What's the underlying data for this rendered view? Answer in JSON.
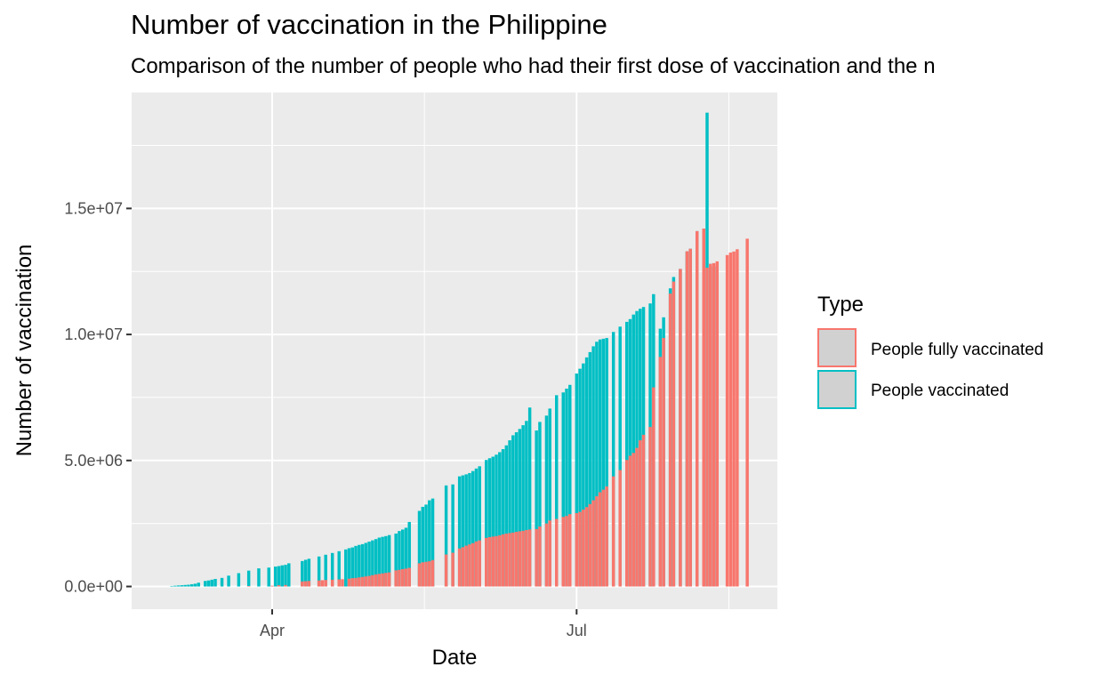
{
  "chart_data": {
    "type": "bar",
    "title": "Number of vaccination in the Philippine",
    "subtitle": "Comparison of the number of people who had their first dose of vaccination and the n",
    "xlabel": "Date",
    "ylabel": "Number of vaccination",
    "x_ticks": [
      {
        "date": "2021-04-01",
        "label": "Apr"
      },
      {
        "date": "2021-07-01",
        "label": "Jul"
      }
    ],
    "y_ticks": [
      {
        "value": 0,
        "label": "0.0e+00"
      },
      {
        "value": 5000000,
        "label": "5.0e+06"
      },
      {
        "value": 10000000,
        "label": "1.0e+07"
      },
      {
        "value": 15000000,
        "label": "1.5e+07"
      }
    ],
    "xlim": [
      "2021-02-18",
      "2021-08-30"
    ],
    "ylim": [
      -900000,
      19600000
    ],
    "grid": true,
    "legend_position": "right",
    "legend_title": "Type",
    "colors": {
      "People fully vaccinated": "#F8766D",
      "People vaccinated": "#00BFC4"
    },
    "series": [
      {
        "name": "People vaccinated",
        "points": [
          [
            "2021-03-02",
            20000
          ],
          [
            "2021-03-03",
            30000
          ],
          [
            "2021-03-04",
            40000
          ],
          [
            "2021-03-05",
            50000
          ],
          [
            "2021-03-06",
            60000
          ],
          [
            "2021-03-07",
            70000
          ],
          [
            "2021-03-08",
            90000
          ],
          [
            "2021-03-09",
            110000
          ],
          [
            "2021-03-10",
            150000
          ],
          [
            "2021-03-12",
            220000
          ],
          [
            "2021-03-13",
            240000
          ],
          [
            "2021-03-14",
            270000
          ],
          [
            "2021-03-15",
            300000
          ],
          [
            "2021-03-17",
            340000
          ],
          [
            "2021-03-19",
            430000
          ],
          [
            "2021-03-22",
            530000
          ],
          [
            "2021-03-25",
            630000
          ],
          [
            "2021-03-28",
            720000
          ],
          [
            "2021-03-31",
            750000
          ],
          [
            "2021-04-02",
            790000
          ],
          [
            "2021-04-03",
            810000
          ],
          [
            "2021-04-04",
            840000
          ],
          [
            "2021-04-05",
            860000
          ],
          [
            "2021-04-06",
            920000
          ],
          [
            "2021-04-10",
            1010000
          ],
          [
            "2021-04-11",
            1060000
          ],
          [
            "2021-04-12",
            1100000
          ],
          [
            "2021-04-15",
            1190000
          ],
          [
            "2021-04-17",
            1260000
          ],
          [
            "2021-04-19",
            1330000
          ],
          [
            "2021-04-21",
            1400000
          ],
          [
            "2021-04-23",
            1470000
          ],
          [
            "2021-04-24",
            1520000
          ],
          [
            "2021-04-25",
            1550000
          ],
          [
            "2021-04-26",
            1610000
          ],
          [
            "2021-04-27",
            1650000
          ],
          [
            "2021-04-28",
            1680000
          ],
          [
            "2021-04-29",
            1730000
          ],
          [
            "2021-04-30",
            1780000
          ],
          [
            "2021-05-01",
            1830000
          ],
          [
            "2021-05-02",
            1880000
          ],
          [
            "2021-05-03",
            1940000
          ],
          [
            "2021-05-04",
            1970000
          ],
          [
            "2021-05-05",
            2000000
          ],
          [
            "2021-05-06",
            2040000
          ],
          [
            "2021-05-08",
            2100000
          ],
          [
            "2021-05-09",
            2200000
          ],
          [
            "2021-05-10",
            2260000
          ],
          [
            "2021-05-11",
            2330000
          ],
          [
            "2021-05-12",
            2560000
          ],
          [
            "2021-05-15",
            3000000
          ],
          [
            "2021-05-16",
            3160000
          ],
          [
            "2021-05-17",
            3250000
          ],
          [
            "2021-05-18",
            3420000
          ],
          [
            "2021-05-19",
            3490000
          ],
          [
            "2021-05-23",
            4010000
          ],
          [
            "2021-05-25",
            4050000
          ],
          [
            "2021-05-27",
            4370000
          ],
          [
            "2021-05-28",
            4410000
          ],
          [
            "2021-05-29",
            4450000
          ],
          [
            "2021-05-30",
            4500000
          ],
          [
            "2021-05-31",
            4580000
          ],
          [
            "2021-06-01",
            4680000
          ],
          [
            "2021-06-02",
            4770000
          ],
          [
            "2021-06-04",
            5020000
          ],
          [
            "2021-06-05",
            5090000
          ],
          [
            "2021-06-06",
            5150000
          ],
          [
            "2021-06-07",
            5230000
          ],
          [
            "2021-06-08",
            5330000
          ],
          [
            "2021-06-09",
            5450000
          ],
          [
            "2021-06-10",
            5600000
          ],
          [
            "2021-06-11",
            5800000
          ],
          [
            "2021-06-12",
            6000000
          ],
          [
            "2021-06-13",
            6120000
          ],
          [
            "2021-06-14",
            6250000
          ],
          [
            "2021-06-15",
            6400000
          ],
          [
            "2021-06-16",
            6570000
          ],
          [
            "2021-06-17",
            7100000
          ],
          [
            "2021-06-19",
            6190000
          ],
          [
            "2021-06-20",
            6530000
          ],
          [
            "2021-06-22",
            6780000
          ],
          [
            "2021-06-23",
            7060000
          ],
          [
            "2021-06-25",
            7590000
          ],
          [
            "2021-06-27",
            7700000
          ],
          [
            "2021-06-28",
            7850000
          ],
          [
            "2021-06-29",
            8000000
          ],
          [
            "2021-07-01",
            8450000
          ],
          [
            "2021-07-02",
            8640000
          ],
          [
            "2021-07-03",
            8850000
          ],
          [
            "2021-07-04",
            9090000
          ],
          [
            "2021-07-05",
            9300000
          ],
          [
            "2021-07-06",
            9530000
          ],
          [
            "2021-07-07",
            9710000
          ],
          [
            "2021-07-08",
            9800000
          ],
          [
            "2021-07-09",
            9830000
          ],
          [
            "2021-07-10",
            9860000
          ],
          [
            "2021-07-12",
            10100000
          ],
          [
            "2021-07-14",
            10310000
          ],
          [
            "2021-07-16",
            10500000
          ],
          [
            "2021-07-17",
            10610000
          ],
          [
            "2021-07-18",
            10790000
          ],
          [
            "2021-07-19",
            10930000
          ],
          [
            "2021-07-20",
            11020000
          ],
          [
            "2021-07-21",
            11090000
          ],
          [
            "2021-07-23",
            11230000
          ],
          [
            "2021-07-24",
            11600000
          ],
          [
            "2021-07-26",
            10230000
          ],
          [
            "2021-07-27",
            10680000
          ],
          [
            "2021-07-29",
            11830000
          ],
          [
            "2021-07-30",
            12280000
          ],
          [
            "2021-08-01",
            12600000
          ],
          [
            "2021-08-03",
            13300000
          ],
          [
            "2021-08-04",
            13400000
          ],
          [
            "2021-08-06",
            14100000
          ],
          [
            "2021-08-08",
            14200000
          ],
          [
            "2021-08-09",
            18800000
          ],
          [
            "2021-08-10",
            12800000
          ],
          [
            "2021-08-11",
            12700000
          ]
        ]
      },
      {
        "name": "People fully vaccinated",
        "points": [
          [
            "2021-03-25",
            20000
          ],
          [
            "2021-04-01",
            30000
          ],
          [
            "2021-04-03",
            50000
          ],
          [
            "2021-04-05",
            60000
          ],
          [
            "2021-04-10",
            200000
          ],
          [
            "2021-04-11",
            210000
          ],
          [
            "2021-04-12",
            220000
          ],
          [
            "2021-04-15",
            240000
          ],
          [
            "2021-04-16",
            250000
          ],
          [
            "2021-04-17",
            260000
          ],
          [
            "2021-04-19",
            270000
          ],
          [
            "2021-04-21",
            280000
          ],
          [
            "2021-04-22",
            290000
          ],
          [
            "2021-04-24",
            310000
          ],
          [
            "2021-04-25",
            330000
          ],
          [
            "2021-04-26",
            340000
          ],
          [
            "2021-04-27",
            360000
          ],
          [
            "2021-04-28",
            380000
          ],
          [
            "2021-04-29",
            400000
          ],
          [
            "2021-04-30",
            420000
          ],
          [
            "2021-05-01",
            450000
          ],
          [
            "2021-05-02",
            480000
          ],
          [
            "2021-05-03",
            500000
          ],
          [
            "2021-05-04",
            520000
          ],
          [
            "2021-05-05",
            540000
          ],
          [
            "2021-05-06",
            560000
          ],
          [
            "2021-05-08",
            640000
          ],
          [
            "2021-05-09",
            660000
          ],
          [
            "2021-05-10",
            690000
          ],
          [
            "2021-05-11",
            710000
          ],
          [
            "2021-05-12",
            740000
          ],
          [
            "2021-05-15",
            920000
          ],
          [
            "2021-05-16",
            960000
          ],
          [
            "2021-05-17",
            980000
          ],
          [
            "2021-05-18",
            1000000
          ],
          [
            "2021-05-19",
            1050000
          ],
          [
            "2021-05-23",
            1270000
          ],
          [
            "2021-05-25",
            1340000
          ],
          [
            "2021-05-27",
            1510000
          ],
          [
            "2021-05-28",
            1560000
          ],
          [
            "2021-05-29",
            1620000
          ],
          [
            "2021-05-30",
            1670000
          ],
          [
            "2021-05-31",
            1720000
          ],
          [
            "2021-06-01",
            1790000
          ],
          [
            "2021-06-02",
            1830000
          ],
          [
            "2021-06-04",
            1930000
          ],
          [
            "2021-06-05",
            1960000
          ],
          [
            "2021-06-06",
            1980000
          ],
          [
            "2021-06-07",
            2000000
          ],
          [
            "2021-06-08",
            2030000
          ],
          [
            "2021-06-09",
            2070000
          ],
          [
            "2021-06-10",
            2100000
          ],
          [
            "2021-06-11",
            2120000
          ],
          [
            "2021-06-12",
            2140000
          ],
          [
            "2021-06-13",
            2170000
          ],
          [
            "2021-06-14",
            2190000
          ],
          [
            "2021-06-15",
            2210000
          ],
          [
            "2021-06-16",
            2240000
          ],
          [
            "2021-06-17",
            2260000
          ],
          [
            "2021-06-19",
            2280000
          ],
          [
            "2021-06-20",
            2380000
          ],
          [
            "2021-06-22",
            2500000
          ],
          [
            "2021-06-23",
            2620000
          ],
          [
            "2021-06-25",
            2680000
          ],
          [
            "2021-06-27",
            2760000
          ],
          [
            "2021-06-28",
            2800000
          ],
          [
            "2021-06-29",
            2870000
          ],
          [
            "2021-07-01",
            2910000
          ],
          [
            "2021-07-02",
            2960000
          ],
          [
            "2021-07-03",
            3050000
          ],
          [
            "2021-07-04",
            3150000
          ],
          [
            "2021-07-05",
            3270000
          ],
          [
            "2021-07-06",
            3420000
          ],
          [
            "2021-07-07",
            3580000
          ],
          [
            "2021-07-08",
            3740000
          ],
          [
            "2021-07-09",
            3840000
          ],
          [
            "2021-07-10",
            3970000
          ],
          [
            "2021-07-12",
            4370000
          ],
          [
            "2021-07-14",
            4620000
          ],
          [
            "2021-07-16",
            5020000
          ],
          [
            "2021-07-17",
            5190000
          ],
          [
            "2021-07-18",
            5300000
          ],
          [
            "2021-07-19",
            5500000
          ],
          [
            "2021-07-20",
            5800000
          ],
          [
            "2021-07-21",
            6020000
          ],
          [
            "2021-07-23",
            6330000
          ],
          [
            "2021-07-24",
            7900000
          ],
          [
            "2021-07-26",
            9110000
          ],
          [
            "2021-07-27",
            9860000
          ],
          [
            "2021-07-29",
            11620000
          ],
          [
            "2021-07-30",
            12100000
          ],
          [
            "2021-08-01",
            12600000
          ],
          [
            "2021-08-03",
            13300000
          ],
          [
            "2021-08-04",
            13400000
          ],
          [
            "2021-08-06",
            14100000
          ],
          [
            "2021-08-08",
            14200000
          ],
          [
            "2021-08-09",
            12650000
          ],
          [
            "2021-08-10",
            12800000
          ],
          [
            "2021-08-11",
            12830000
          ],
          [
            "2021-08-12",
            12900000
          ],
          [
            "2021-08-15",
            13150000
          ],
          [
            "2021-08-16",
            13250000
          ],
          [
            "2021-08-17",
            13290000
          ],
          [
            "2021-08-18",
            13380000
          ],
          [
            "2021-08-21",
            13800000
          ]
        ]
      }
    ]
  }
}
